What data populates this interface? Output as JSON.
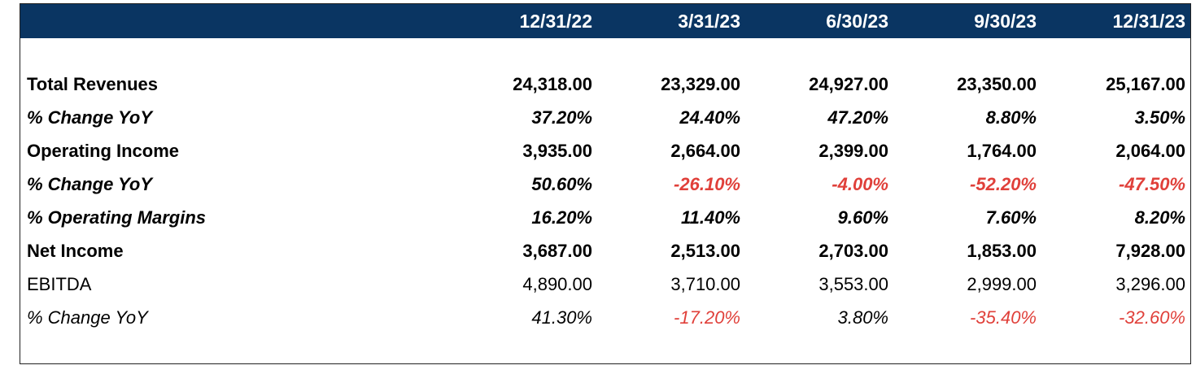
{
  "header": {
    "dates": [
      "12/31/22",
      "3/31/23",
      "6/30/23",
      "9/30/23",
      "12/31/23"
    ]
  },
  "rows": [
    {
      "label": "Total Revenues",
      "style": "bold",
      "values": [
        "24,318.00",
        "23,329.00",
        "24,927.00",
        "23,350.00",
        "25,167.00"
      ]
    },
    {
      "label": "% Change YoY",
      "style": "bold-italic",
      "values": [
        "37.20%",
        "24.40%",
        "47.20%",
        "8.80%",
        "3.50%"
      ]
    },
    {
      "label": "Operating Income",
      "style": "bold",
      "values": [
        "3,935.00",
        "2,664.00",
        "2,399.00",
        "1,764.00",
        "2,064.00"
      ]
    },
    {
      "label": "% Change YoY",
      "style": "bold-italic",
      "values": [
        "50.60%",
        "-26.10%",
        "-4.00%",
        "-52.20%",
        "-47.50%"
      ]
    },
    {
      "label": "% Operating Margins",
      "style": "bold-italic",
      "values": [
        "16.20%",
        "11.40%",
        "9.60%",
        "7.60%",
        "8.20%"
      ]
    },
    {
      "label": "Net Income",
      "style": "bold",
      "values": [
        "3,687.00",
        "2,513.00",
        "2,703.00",
        "1,853.00",
        "7,928.00"
      ]
    },
    {
      "label": "EBITDA",
      "style": "regular",
      "values": [
        "4,890.00",
        "3,710.00",
        "3,553.00",
        "2,999.00",
        "3,296.00"
      ]
    },
    {
      "label": "% Change YoY",
      "style": "italic",
      "values": [
        "41.30%",
        "-17.20%",
        "3.80%",
        "-35.40%",
        "-32.60%"
      ]
    }
  ],
  "colors": {
    "header_bg": "#0a3562",
    "header_text": "#ffffff",
    "negative": "#e0403a",
    "text": "#000000"
  }
}
